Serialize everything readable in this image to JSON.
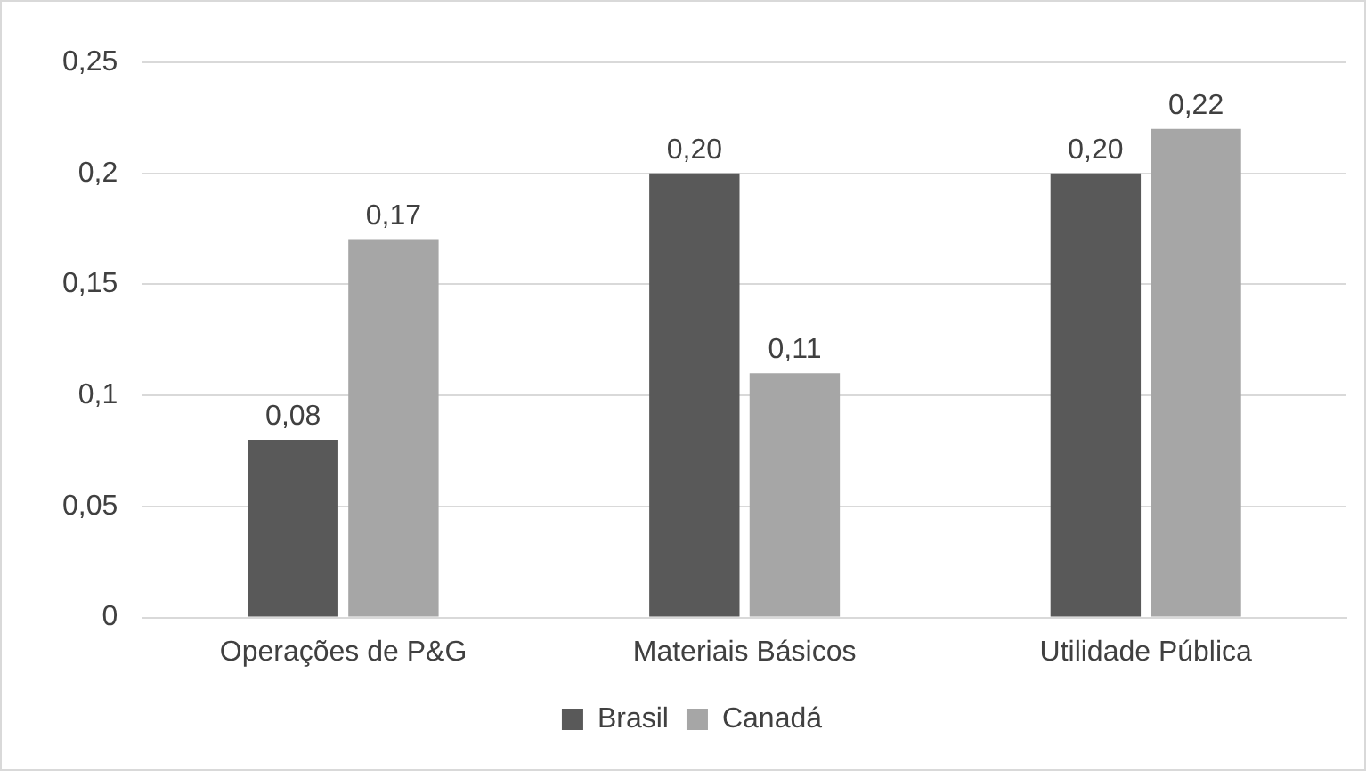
{
  "chart_data": {
    "type": "bar",
    "categories": [
      "Operações de P&G",
      "Materiais Básicos",
      "Utilidade Pública"
    ],
    "series": [
      {
        "name": "Brasil",
        "color": "#595959",
        "values": [
          0.08,
          0.2,
          0.2
        ],
        "value_labels": [
          "0,08",
          "0,20",
          "0,20"
        ]
      },
      {
        "name": "Canadá",
        "color": "#a6a6a6",
        "values": [
          0.17,
          0.11,
          0.22
        ],
        "value_labels": [
          "0,17",
          "0,11",
          "0,22"
        ]
      }
    ],
    "ylim": [
      0,
      0.25
    ],
    "yticks": [
      {
        "value": 0,
        "label": "0"
      },
      {
        "value": 0.05,
        "label": "0,05"
      },
      {
        "value": 0.1,
        "label": "0,1"
      },
      {
        "value": 0.15,
        "label": "0,15"
      },
      {
        "value": 0.2,
        "label": "0,2"
      },
      {
        "value": 0.25,
        "label": "0,25"
      }
    ],
    "grid": "y",
    "legend": "bottom"
  }
}
